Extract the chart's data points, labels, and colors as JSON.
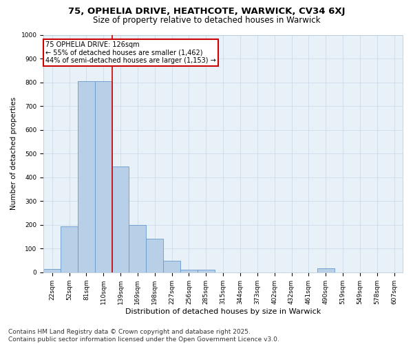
{
  "title1": "75, OPHELIA DRIVE, HEATHCOTE, WARWICK, CV34 6XJ",
  "title2": "Size of property relative to detached houses in Warwick",
  "xlabel": "Distribution of detached houses by size in Warwick",
  "ylabel": "Number of detached properties",
  "bar_labels": [
    "22sqm",
    "52sqm",
    "81sqm",
    "110sqm",
    "139sqm",
    "169sqm",
    "198sqm",
    "227sqm",
    "256sqm",
    "285sqm",
    "315sqm",
    "344sqm",
    "373sqm",
    "402sqm",
    "432sqm",
    "461sqm",
    "490sqm",
    "519sqm",
    "549sqm",
    "578sqm",
    "607sqm"
  ],
  "bar_values": [
    15,
    195,
    805,
    805,
    445,
    200,
    143,
    50,
    12,
    10,
    0,
    0,
    0,
    0,
    0,
    0,
    18,
    0,
    0,
    0,
    0
  ],
  "bar_color": "#b8cfe8",
  "bar_edge_color": "#6699cc",
  "vline_pos": 3.5,
  "vline_color": "#cc0000",
  "subject_label": "75 OPHELIA DRIVE: 126sqm",
  "annotation_line1": "← 55% of detached houses are smaller (1,462)",
  "annotation_line2": "44% of semi-detached houses are larger (1,153) →",
  "annotation_box_color": "#cc0000",
  "ylim": [
    0,
    1000
  ],
  "yticks": [
    0,
    100,
    200,
    300,
    400,
    500,
    600,
    700,
    800,
    900,
    1000
  ],
  "grid_color": "#c8d8e8",
  "bg_color": "#e8f0f8",
  "footer1": "Contains HM Land Registry data © Crown copyright and database right 2025.",
  "footer2": "Contains public sector information licensed under the Open Government Licence v3.0.",
  "title1_fontsize": 9.5,
  "title2_fontsize": 8.5,
  "xlabel_fontsize": 8,
  "ylabel_fontsize": 7.5,
  "tick_fontsize": 6.5,
  "annot_fontsize": 7,
  "footer_fontsize": 6.5
}
